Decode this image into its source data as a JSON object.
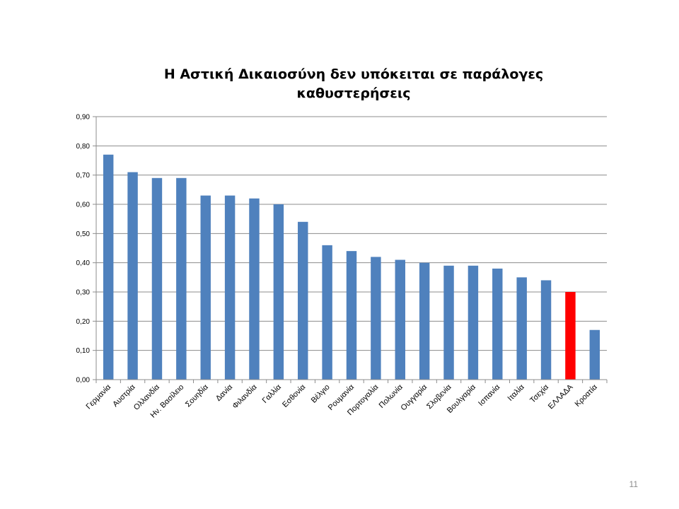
{
  "slide_number": "11",
  "chart_data": {
    "type": "bar",
    "title_lines": [
      "Η Αστική Δικαιοσύνη δεν υπόκειται σε παράλογες",
      "καθυστερήσεις"
    ],
    "xlabel": "",
    "ylabel": "",
    "ylim": [
      0,
      0.9
    ],
    "yticks": [
      "0,00",
      "0,10",
      "0,20",
      "0,30",
      "0,40",
      "0,50",
      "0,60",
      "0,70",
      "0,80",
      "0,90"
    ],
    "grid": true,
    "legend": "none",
    "categories": [
      "Γερμανία",
      "Αυστρία",
      "Ολλανδία",
      "Ην. Βασίλειο",
      "Σουηδία",
      "Δανία",
      "Φιλανδία",
      "Γαλλία",
      "Εσθονία",
      "Βέλγιο",
      "Ρουμανία",
      "Πορτογαλία",
      "Πολωνία",
      "Ουγγαρία",
      "Σλοβενία",
      "Βουλγαρία",
      "Ισπανία",
      "Ιταλία",
      "Τσεχία",
      "ΕΛΛΑΔΑ",
      "Κροατία"
    ],
    "values": [
      0.77,
      0.71,
      0.69,
      0.69,
      0.63,
      0.63,
      0.62,
      0.6,
      0.54,
      0.46,
      0.44,
      0.42,
      0.41,
      0.4,
      0.39,
      0.39,
      0.38,
      0.35,
      0.34,
      0.3,
      0.17
    ],
    "colors": {
      "default": "#4f81bd",
      "highlight": "#ff0000",
      "highlight_category": "ΕΛΛΑΔΑ",
      "gridline": "#8c8c8c",
      "axis": "#8c8c8c"
    }
  }
}
